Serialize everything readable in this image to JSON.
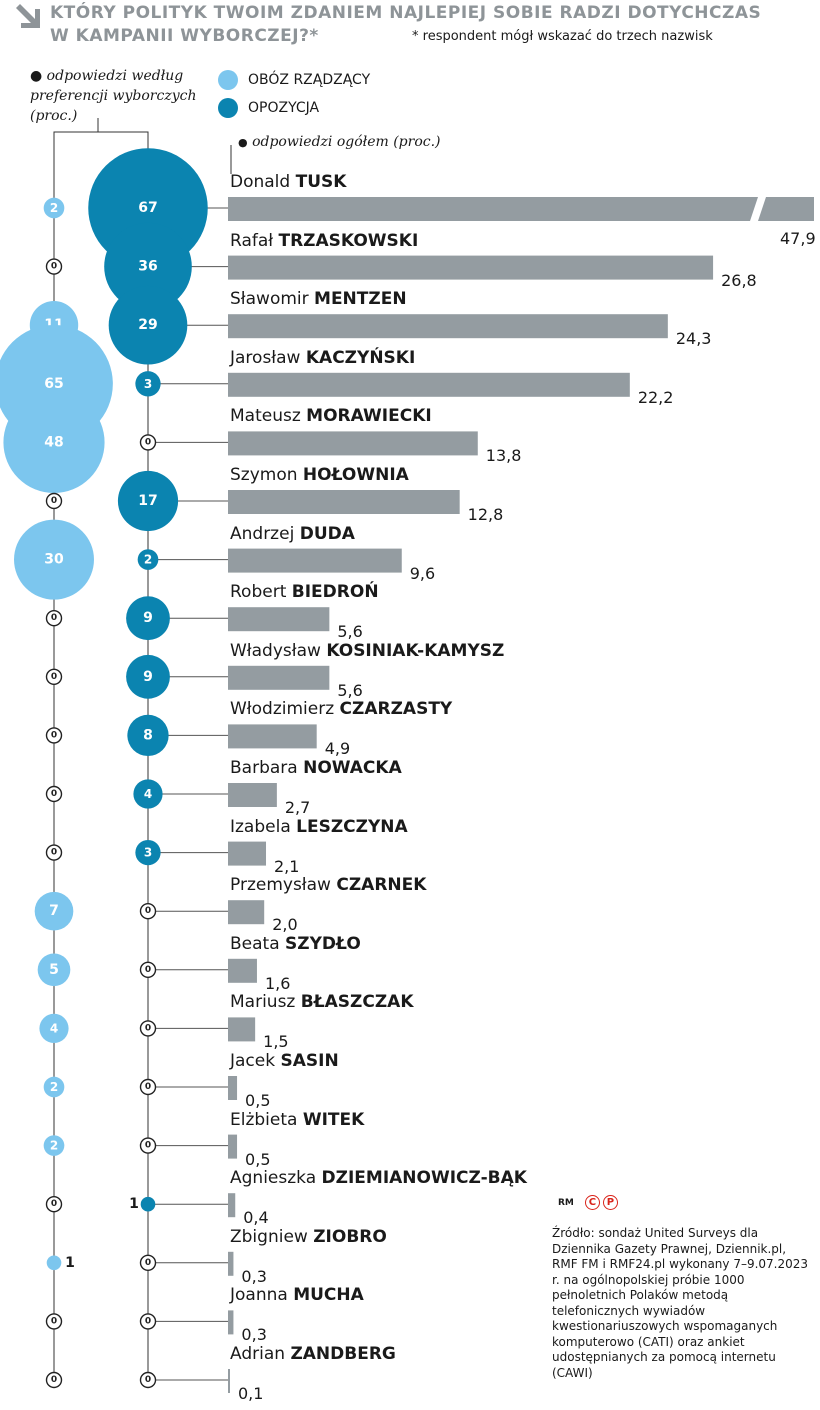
{
  "header": {
    "title_line1": "KTÓRY POLITYK TWOIM ZDANIEM NAJLEPIEJ SOBIE RADZI DOTYCHCZAS",
    "title_line2": "W KAMPANII WYBORCZEJ?*",
    "footnote": "* respondent mógł wskazać do trzech nazwisk",
    "arrow_icon": "down-right-arrow-icon",
    "title_color": "#8e9498"
  },
  "notes": {
    "by_preference": "odpowiedzi według preferencji wyborczych (proc.)",
    "overall": "odpowiedzi ogółem (proc.)"
  },
  "legend": [
    {
      "label": "OBÓZ RZĄDZĄCY",
      "color": "#7cc6ee"
    },
    {
      "label": "OPOZYCJA",
      "color": "#0b84b0"
    }
  ],
  "colors": {
    "ruling": "#7cc6ee",
    "opposition": "#0b84b0",
    "bar": "#949ca1"
  },
  "chart_data": {
    "type": "bar",
    "orientation": "horizontal",
    "overall_label": "odpowiedzi ogółem (proc.)",
    "broken_bar": "Donald TUSK",
    "rows": [
      {
        "first": "Donald",
        "last": "TUSK",
        "overall": 47.9,
        "overall_label": "47,9",
        "ruling": 2,
        "opposition": 67
      },
      {
        "first": "Rafał",
        "last": "TRZASKOWSKI",
        "overall": 26.8,
        "overall_label": "26,8",
        "ruling": 0,
        "opposition": 36
      },
      {
        "first": "Sławomir",
        "last": "MENTZEN",
        "overall": 24.3,
        "overall_label": "24,3",
        "ruling": 11,
        "opposition": 29
      },
      {
        "first": "Jarosław",
        "last": "KACZYŃSKI",
        "overall": 22.2,
        "overall_label": "22,2",
        "ruling": 65,
        "opposition": 3
      },
      {
        "first": "Mateusz",
        "last": "MORAWIECKI",
        "overall": 13.8,
        "overall_label": "13,8",
        "ruling": 48,
        "opposition": 0
      },
      {
        "first": "Szymon",
        "last": "HOŁOWNIA",
        "overall": 12.8,
        "overall_label": "12,8",
        "ruling": 0,
        "opposition": 17
      },
      {
        "first": "Andrzej",
        "last": "DUDA",
        "overall": 9.6,
        "overall_label": "9,6",
        "ruling": 30,
        "opposition": 2
      },
      {
        "first": "Robert",
        "last": "BIEDROŃ",
        "overall": 5.6,
        "overall_label": "5,6",
        "ruling": 0,
        "opposition": 9
      },
      {
        "first": "Władysław",
        "last": "KOSINIAK-KAMYSZ",
        "overall": 5.6,
        "overall_label": "5,6",
        "ruling": 0,
        "opposition": 9
      },
      {
        "first": "Włodzimierz",
        "last": "CZARZASTY",
        "overall": 4.9,
        "overall_label": "4,9",
        "ruling": 0,
        "opposition": 8
      },
      {
        "first": "Barbara",
        "last": "NOWACKA",
        "overall": 2.7,
        "overall_label": "2,7",
        "ruling": 0,
        "opposition": 4
      },
      {
        "first": "Izabela",
        "last": "LESZCZYNA",
        "overall": 2.1,
        "overall_label": "2,1",
        "ruling": 0,
        "opposition": 3
      },
      {
        "first": "Przemysław",
        "last": "CZARNEK",
        "overall": 2.0,
        "overall_label": "2,0",
        "ruling": 7,
        "opposition": 0
      },
      {
        "first": "Beata",
        "last": "SZYDŁO",
        "overall": 1.6,
        "overall_label": "1,6",
        "ruling": 5,
        "opposition": 0
      },
      {
        "first": "Mariusz",
        "last": "BŁASZCZAK",
        "overall": 1.5,
        "overall_label": "1,5",
        "ruling": 4,
        "opposition": 0
      },
      {
        "first": "Jacek",
        "last": "SASIN",
        "overall": 0.5,
        "overall_label": "0,5",
        "ruling": 2,
        "opposition": 0
      },
      {
        "first": "Elżbieta",
        "last": "WITEK",
        "overall": 0.5,
        "overall_label": "0,5",
        "ruling": 2,
        "opposition": 0
      },
      {
        "first": "Agnieszka",
        "last": "DZIEMIANOWICZ-BĄK",
        "overall": 0.4,
        "overall_label": "0,4",
        "ruling": 0,
        "opposition": 1
      },
      {
        "first": "Zbigniew",
        "last": "ZIOBRO",
        "overall": 0.3,
        "overall_label": "0,3",
        "ruling": 1,
        "opposition": 0
      },
      {
        "first": "Joanna",
        "last": "MUCHA",
        "overall": 0.3,
        "overall_label": "0,3",
        "ruling": 0,
        "opposition": 0
      },
      {
        "first": "Adrian",
        "last": "ZANDBERG",
        "overall": 0.1,
        "overall_label": "0,1",
        "ruling": 0,
        "opposition": 0
      }
    ]
  },
  "logo": {
    "text": "RM",
    "circle_c": "C",
    "circle_p": "P"
  },
  "source": "Źródło: sondaż United Surveys dla Dziennika Gazety Prawnej, Dziennik.pl, RMF FM i RMF24.pl wykonany 7–9.07.2023 r. na ogólnopolskiej próbie 1000 pełnoletnich Polaków metodą telefonicznych wywiadów kwestionariuszowych wspomaganych komputerowo (CATI) oraz ankiet udostępnianych za pomocą internetu (CAWI)"
}
